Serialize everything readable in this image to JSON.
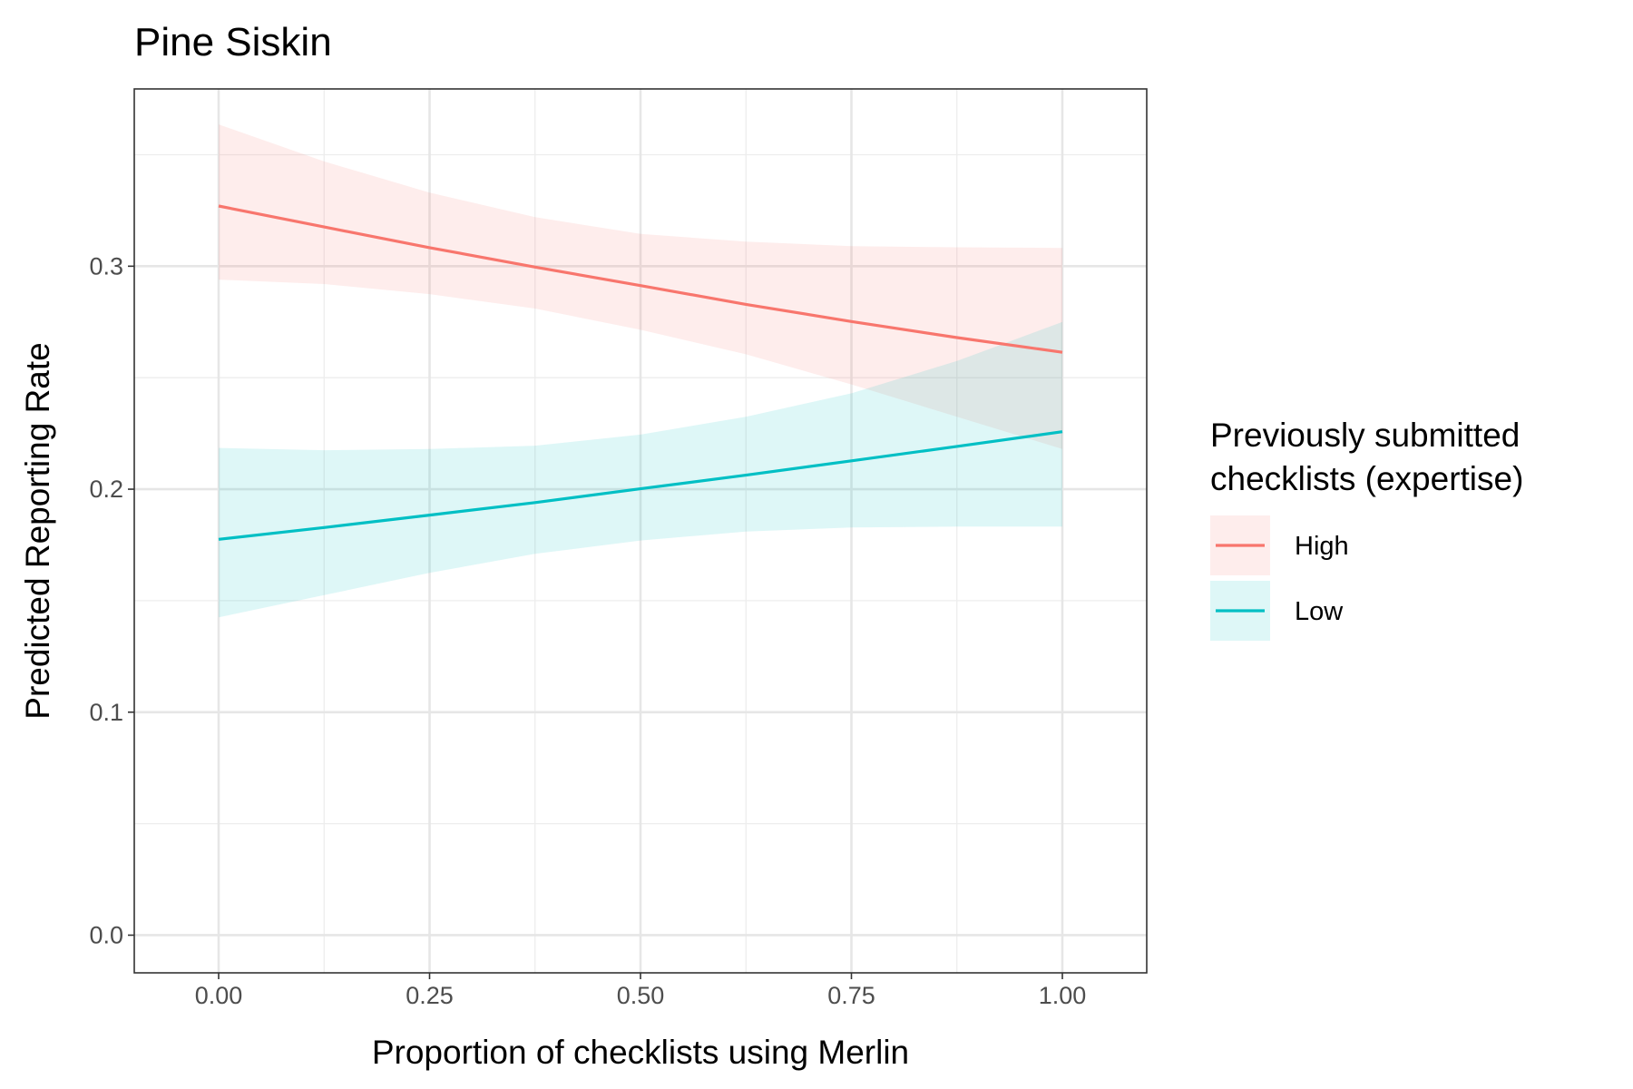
{
  "chart_data": {
    "type": "line",
    "title": "Pine Siskin",
    "xlabel": "Proportion of checklists using Merlin",
    "ylabel": "Predicted Reporting Rate",
    "xlim": [
      -0.1,
      1.1
    ],
    "ylim": [
      -0.0169,
      0.3795
    ],
    "x_ticks": [
      0.0,
      0.25,
      0.5,
      0.75,
      1.0
    ],
    "x_tick_labels": [
      "0.00",
      "0.25",
      "0.50",
      "0.75",
      "1.00"
    ],
    "y_ticks": [
      0.0,
      0.1,
      0.2,
      0.3
    ],
    "y_tick_labels": [
      "0.0",
      "0.1",
      "0.2",
      "0.3"
    ],
    "x_minor_ticks": [
      0.125,
      0.375,
      0.625,
      0.875
    ],
    "y_minor_ticks": [
      0.05,
      0.15,
      0.25,
      0.35
    ],
    "grid": true,
    "legend": {
      "title": [
        "Previously submitted",
        "checklists (expertise)"
      ],
      "placement": "right"
    },
    "series": [
      {
        "name": "High",
        "color": "#F8766D",
        "ribbon_color": "#FFEEEC",
        "x": [
          0.0,
          0.125,
          0.25,
          0.375,
          0.5,
          0.625,
          0.75,
          0.875,
          1.0
        ],
        "y": [
          0.327,
          0.3176,
          0.3083,
          0.2996,
          0.2913,
          0.2829,
          0.2752,
          0.268,
          0.2614
        ],
        "lower": [
          0.294,
          0.292,
          0.2875,
          0.281,
          0.2715,
          0.2605,
          0.247,
          0.2325,
          0.218
        ],
        "upper": [
          0.3636,
          0.347,
          0.333,
          0.322,
          0.3145,
          0.311,
          0.309,
          0.3085,
          0.3082
        ]
      },
      {
        "name": "Low",
        "color": "#00BFC4",
        "ribbon_color": "#E0F5F7",
        "x": [
          0.0,
          0.125,
          0.25,
          0.375,
          0.5,
          0.625,
          0.75,
          0.875,
          1.0
        ],
        "y": [
          0.1775,
          0.1828,
          0.1884,
          0.194,
          0.2002,
          0.2063,
          0.2127,
          0.2192,
          0.2258
        ],
        "lower": [
          0.1425,
          0.1525,
          0.1625,
          0.171,
          0.177,
          0.181,
          0.1828,
          0.1832,
          0.1832
        ],
        "upper": [
          0.2185,
          0.2175,
          0.218,
          0.2195,
          0.2245,
          0.2325,
          0.243,
          0.2575,
          0.275
        ]
      }
    ]
  }
}
